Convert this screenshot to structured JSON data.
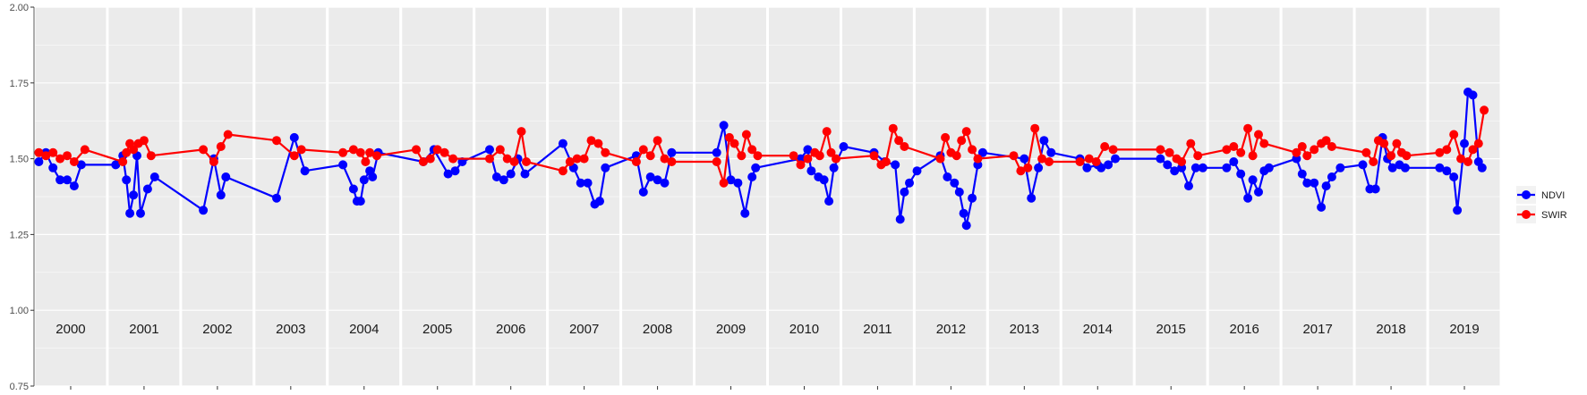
{
  "chart_data": {
    "type": "line",
    "title": "",
    "xlabel": "",
    "ylabel": "",
    "ylim": [
      0.75,
      2.0
    ],
    "y_ticks": [
      "0.75",
      "1.00",
      "1.25",
      "1.50",
      "1.75",
      "2.00"
    ],
    "y_tick_values": [
      0.75,
      1.0,
      1.25,
      1.5,
      1.75,
      2.0
    ],
    "years": [
      "2000",
      "2001",
      "2002",
      "2003",
      "2004",
      "2005",
      "2006",
      "2007",
      "2008",
      "2009",
      "2010",
      "2011",
      "2012",
      "2013",
      "2014",
      "2015",
      "2016",
      "2017",
      "2018",
      "2019"
    ],
    "grid": true,
    "panel_background": "#ebebeb",
    "legend_position": "right",
    "series": [
      {
        "name": "NDVI",
        "color": "#0000ff",
        "points": [
          [
            2000.05,
            1.49
          ],
          [
            2000.15,
            1.52
          ],
          [
            2000.25,
            1.47
          ],
          [
            2000.35,
            1.43
          ],
          [
            2000.45,
            1.43
          ],
          [
            2000.55,
            1.41
          ],
          [
            2000.65,
            1.48
          ],
          [
            2001.1,
            1.48
          ],
          [
            2001.2,
            1.51
          ],
          [
            2001.25,
            1.43
          ],
          [
            2001.3,
            1.32
          ],
          [
            2001.35,
            1.38
          ],
          [
            2001.4,
            1.51
          ],
          [
            2001.45,
            1.32
          ],
          [
            2001.55,
            1.4
          ],
          [
            2001.65,
            1.44
          ],
          [
            2002.3,
            1.33
          ],
          [
            2002.45,
            1.5
          ],
          [
            2002.55,
            1.38
          ],
          [
            2002.62,
            1.44
          ],
          [
            2003.3,
            1.37
          ],
          [
            2003.55,
            1.57
          ],
          [
            2003.7,
            1.46
          ],
          [
            2004.2,
            1.48
          ],
          [
            2004.35,
            1.4
          ],
          [
            2004.4,
            1.36
          ],
          [
            2004.45,
            1.36
          ],
          [
            2004.5,
            1.43
          ],
          [
            2004.58,
            1.46
          ],
          [
            2004.62,
            1.44
          ],
          [
            2004.7,
            1.52
          ],
          [
            2005.3,
            1.49
          ],
          [
            2005.45,
            1.53
          ],
          [
            2005.65,
            1.45
          ],
          [
            2005.75,
            1.46
          ],
          [
            2005.85,
            1.49
          ],
          [
            2006.2,
            1.53
          ],
          [
            2006.3,
            1.44
          ],
          [
            2006.4,
            1.43
          ],
          [
            2006.5,
            1.45
          ],
          [
            2006.6,
            1.5
          ],
          [
            2006.7,
            1.45
          ],
          [
            2007.2,
            1.55
          ],
          [
            2007.35,
            1.47
          ],
          [
            2007.45,
            1.42
          ],
          [
            2007.55,
            1.42
          ],
          [
            2007.65,
            1.35
          ],
          [
            2007.72,
            1.36
          ],
          [
            2007.8,
            1.47
          ],
          [
            2008.2,
            1.51
          ],
          [
            2008.3,
            1.39
          ],
          [
            2008.4,
            1.44
          ],
          [
            2008.5,
            1.43
          ],
          [
            2008.6,
            1.42
          ],
          [
            2008.7,
            1.52
          ],
          [
            2009.3,
            1.52
          ],
          [
            2009.4,
            1.61
          ],
          [
            2009.5,
            1.43
          ],
          [
            2009.6,
            1.42
          ],
          [
            2009.7,
            1.32
          ],
          [
            2009.8,
            1.44
          ],
          [
            2009.85,
            1.47
          ],
          [
            2010.45,
            1.5
          ],
          [
            2010.55,
            1.53
          ],
          [
            2010.6,
            1.46
          ],
          [
            2010.7,
            1.44
          ],
          [
            2010.78,
            1.43
          ],
          [
            2010.85,
            1.36
          ],
          [
            2010.92,
            1.47
          ],
          [
            2011.02,
            1.54
          ],
          [
            2011.45,
            1.52
          ],
          [
            2011.6,
            1.49
          ],
          [
            2011.75,
            1.48
          ],
          [
            2011.82,
            1.3
          ],
          [
            2011.88,
            1.39
          ],
          [
            2011.95,
            1.42
          ],
          [
            2012.02,
            1.46
          ],
          [
            2012.35,
            1.51
          ],
          [
            2012.45,
            1.44
          ],
          [
            2012.55,
            1.42
          ],
          [
            2012.62,
            1.39
          ],
          [
            2012.68,
            1.32
          ],
          [
            2012.72,
            1.28
          ],
          [
            2012.8,
            1.37
          ],
          [
            2012.88,
            1.48
          ],
          [
            2012.95,
            1.52
          ],
          [
            2013.5,
            1.5
          ],
          [
            2013.6,
            1.37
          ],
          [
            2013.7,
            1.47
          ],
          [
            2013.78,
            1.56
          ],
          [
            2013.88,
            1.52
          ],
          [
            2014.25,
            1.5
          ],
          [
            2014.35,
            1.47
          ],
          [
            2014.5,
            1.48
          ],
          [
            2014.55,
            1.47
          ],
          [
            2014.65,
            1.48
          ],
          [
            2014.75,
            1.5
          ],
          [
            2015.35,
            1.5
          ],
          [
            2015.45,
            1.48
          ],
          [
            2015.55,
            1.46
          ],
          [
            2015.65,
            1.47
          ],
          [
            2015.75,
            1.41
          ],
          [
            2015.85,
            1.47
          ],
          [
            2015.95,
            1.47
          ],
          [
            2016.25,
            1.47
          ],
          [
            2016.35,
            1.49
          ],
          [
            2016.45,
            1.45
          ],
          [
            2016.55,
            1.37
          ],
          [
            2016.62,
            1.43
          ],
          [
            2016.7,
            1.39
          ],
          [
            2016.78,
            1.46
          ],
          [
            2016.85,
            1.47
          ],
          [
            2017.2,
            1.5
          ],
          [
            2017.28,
            1.45
          ],
          [
            2017.35,
            1.42
          ],
          [
            2017.45,
            1.42
          ],
          [
            2017.55,
            1.34
          ],
          [
            2017.62,
            1.41
          ],
          [
            2017.7,
            1.44
          ],
          [
            2017.82,
            1.47
          ],
          [
            2018.1,
            1.48
          ],
          [
            2018.2,
            1.4
          ],
          [
            2018.28,
            1.4
          ],
          [
            2018.38,
            1.57
          ],
          [
            2018.45,
            1.5
          ],
          [
            2018.52,
            1.47
          ],
          [
            2018.62,
            1.48
          ],
          [
            2018.7,
            1.47
          ],
          [
            2019.15,
            1.47
          ],
          [
            2019.25,
            1.46
          ],
          [
            2019.35,
            1.44
          ],
          [
            2019.4,
            1.33
          ],
          [
            2019.5,
            1.55
          ],
          [
            2019.55,
            1.72
          ],
          [
            2019.62,
            1.71
          ],
          [
            2019.7,
            1.49
          ],
          [
            2019.75,
            1.47
          ]
        ]
      },
      {
        "name": "SWIR",
        "color": "#ff0000",
        "points": [
          [
            2000.05,
            1.52
          ],
          [
            2000.15,
            1.51
          ],
          [
            2000.25,
            1.52
          ],
          [
            2000.35,
            1.5
          ],
          [
            2000.45,
            1.51
          ],
          [
            2000.55,
            1.49
          ],
          [
            2000.7,
            1.53
          ],
          [
            2001.2,
            1.49
          ],
          [
            2001.25,
            1.52
          ],
          [
            2001.3,
            1.55
          ],
          [
            2001.35,
            1.53
          ],
          [
            2001.42,
            1.55
          ],
          [
            2001.5,
            1.56
          ],
          [
            2001.6,
            1.51
          ],
          [
            2002.3,
            1.53
          ],
          [
            2002.45,
            1.49
          ],
          [
            2002.55,
            1.54
          ],
          [
            2002.65,
            1.58
          ],
          [
            2003.3,
            1.56
          ],
          [
            2003.55,
            1.51
          ],
          [
            2003.65,
            1.53
          ],
          [
            2004.2,
            1.52
          ],
          [
            2004.35,
            1.53
          ],
          [
            2004.45,
            1.52
          ],
          [
            2004.52,
            1.49
          ],
          [
            2004.58,
            1.52
          ],
          [
            2004.68,
            1.51
          ],
          [
            2005.2,
            1.53
          ],
          [
            2005.3,
            1.49
          ],
          [
            2005.4,
            1.5
          ],
          [
            2005.5,
            1.53
          ],
          [
            2005.6,
            1.52
          ],
          [
            2005.72,
            1.5
          ],
          [
            2006.2,
            1.5
          ],
          [
            2006.35,
            1.53
          ],
          [
            2006.45,
            1.5
          ],
          [
            2006.55,
            1.49
          ],
          [
            2006.65,
            1.59
          ],
          [
            2006.72,
            1.49
          ],
          [
            2007.2,
            1.46
          ],
          [
            2007.3,
            1.49
          ],
          [
            2007.4,
            1.5
          ],
          [
            2007.5,
            1.5
          ],
          [
            2007.6,
            1.56
          ],
          [
            2007.7,
            1.55
          ],
          [
            2007.8,
            1.52
          ],
          [
            2008.2,
            1.49
          ],
          [
            2008.3,
            1.53
          ],
          [
            2008.4,
            1.51
          ],
          [
            2008.5,
            1.56
          ],
          [
            2008.6,
            1.5
          ],
          [
            2008.7,
            1.49
          ],
          [
            2009.3,
            1.49
          ],
          [
            2009.4,
            1.42
          ],
          [
            2009.48,
            1.57
          ],
          [
            2009.55,
            1.55
          ],
          [
            2009.65,
            1.51
          ],
          [
            2009.72,
            1.58
          ],
          [
            2009.8,
            1.53
          ],
          [
            2009.88,
            1.51
          ],
          [
            2010.35,
            1.51
          ],
          [
            2010.45,
            1.48
          ],
          [
            2010.55,
            1.5
          ],
          [
            2010.65,
            1.52
          ],
          [
            2010.72,
            1.51
          ],
          [
            2010.82,
            1.59
          ],
          [
            2010.88,
            1.52
          ],
          [
            2010.95,
            1.5
          ],
          [
            2011.45,
            1.51
          ],
          [
            2011.55,
            1.48
          ],
          [
            2011.62,
            1.49
          ],
          [
            2011.72,
            1.6
          ],
          [
            2011.8,
            1.56
          ],
          [
            2011.88,
            1.54
          ],
          [
            2012.35,
            1.5
          ],
          [
            2012.42,
            1.57
          ],
          [
            2012.5,
            1.52
          ],
          [
            2012.58,
            1.51
          ],
          [
            2012.65,
            1.56
          ],
          [
            2012.72,
            1.59
          ],
          [
            2012.8,
            1.53
          ],
          [
            2012.88,
            1.5
          ],
          [
            2013.35,
            1.51
          ],
          [
            2013.45,
            1.46
          ],
          [
            2013.55,
            1.47
          ],
          [
            2013.65,
            1.6
          ],
          [
            2013.75,
            1.5
          ],
          [
            2013.85,
            1.49
          ],
          [
            2014.25,
            1.49
          ],
          [
            2014.38,
            1.5
          ],
          [
            2014.48,
            1.49
          ],
          [
            2014.6,
            1.54
          ],
          [
            2014.72,
            1.53
          ],
          [
            2015.35,
            1.53
          ],
          [
            2015.48,
            1.52
          ],
          [
            2015.58,
            1.5
          ],
          [
            2015.65,
            1.49
          ],
          [
            2015.78,
            1.55
          ],
          [
            2015.88,
            1.51
          ],
          [
            2016.25,
            1.53
          ],
          [
            2016.35,
            1.54
          ],
          [
            2016.45,
            1.52
          ],
          [
            2016.55,
            1.6
          ],
          [
            2016.62,
            1.51
          ],
          [
            2016.7,
            1.58
          ],
          [
            2016.78,
            1.55
          ],
          [
            2017.2,
            1.52
          ],
          [
            2017.28,
            1.54
          ],
          [
            2017.35,
            1.51
          ],
          [
            2017.45,
            1.53
          ],
          [
            2017.55,
            1.55
          ],
          [
            2017.62,
            1.56
          ],
          [
            2017.7,
            1.54
          ],
          [
            2018.15,
            1.52
          ],
          [
            2018.25,
            1.49
          ],
          [
            2018.32,
            1.56
          ],
          [
            2018.4,
            1.55
          ],
          [
            2018.5,
            1.51
          ],
          [
            2018.58,
            1.55
          ],
          [
            2018.65,
            1.52
          ],
          [
            2018.72,
            1.51
          ],
          [
            2019.15,
            1.52
          ],
          [
            2019.25,
            1.53
          ],
          [
            2019.35,
            1.58
          ],
          [
            2019.45,
            1.5
          ],
          [
            2019.55,
            1.49
          ],
          [
            2019.62,
            1.53
          ],
          [
            2019.7,
            1.55
          ],
          [
            2019.78,
            1.66
          ]
        ]
      }
    ]
  }
}
